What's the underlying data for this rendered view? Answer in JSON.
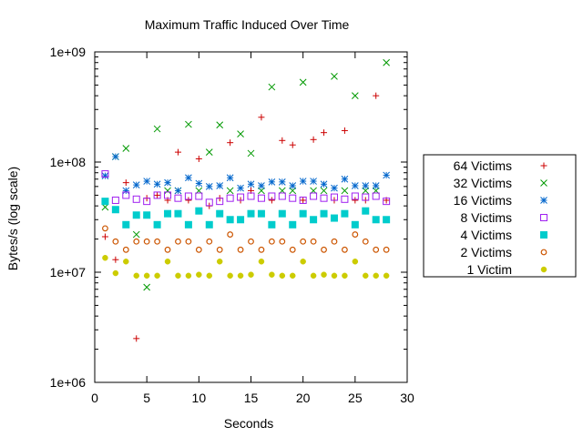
{
  "chart_data": {
    "type": "scatter",
    "title": "Maximum Traffic Induced Over Time",
    "xlabel": "Seconds",
    "ylabel": "Bytes/s (log scale)",
    "xlim": [
      0,
      30
    ],
    "ylim": [
      1000000,
      1000000000
    ],
    "yscale": "log",
    "grid": false,
    "legend_position": "right",
    "x_ticks": [
      0,
      5,
      10,
      15,
      20,
      25,
      30
    ],
    "x_tick_labels": [
      "0",
      "5",
      "10",
      "15",
      "20",
      "25",
      "30"
    ],
    "y_ticks": [
      1000000,
      10000000,
      100000000,
      1000000000
    ],
    "y_tick_labels": [
      "1e+06",
      "1e+07",
      "1e+08",
      "1e+09"
    ],
    "series": [
      {
        "name": "64 Victims",
        "marker": "plus",
        "color": "#cc0000",
        "x": [
          1,
          2,
          3,
          4,
          5,
          6,
          7,
          8,
          9,
          10,
          11,
          12,
          13,
          14,
          15,
          16,
          17,
          18,
          19,
          20,
          21,
          22,
          23,
          24,
          25,
          26,
          27,
          28
        ],
        "y": [
          21000000,
          13000000,
          65000000,
          2500000,
          47000000,
          50000000,
          45000000,
          123000000,
          45000000,
          107000000,
          40000000,
          47000000,
          150000000,
          45000000,
          55000000,
          255000000,
          45000000,
          157000000,
          143000000,
          45000000,
          160000000,
          185000000,
          45000000,
          193000000,
          45000000,
          45000000,
          400000000,
          45000000
        ]
      },
      {
        "name": "32 Victims",
        "marker": "cross",
        "color": "#009900",
        "x": [
          1,
          2,
          3,
          4,
          5,
          6,
          7,
          8,
          9,
          10,
          11,
          12,
          13,
          14,
          15,
          16,
          17,
          18,
          19,
          20,
          21,
          22,
          23,
          24,
          25,
          26,
          27,
          28
        ],
        "y": [
          39000000,
          112000000,
          133000000,
          22000000,
          7300000,
          200000000,
          55000000,
          55000000,
          220000000,
          55000000,
          123000000,
          217000000,
          55000000,
          180000000,
          120000000,
          55000000,
          480000000,
          55000000,
          55000000,
          530000000,
          55000000,
          55000000,
          600000000,
          55000000,
          400000000,
          55000000,
          55000000,
          800000000
        ]
      },
      {
        "name": "16 Victims",
        "marker": "star",
        "color": "#0066cc",
        "x": [
          1,
          2,
          3,
          4,
          5,
          6,
          7,
          8,
          9,
          10,
          11,
          12,
          13,
          14,
          15,
          16,
          17,
          18,
          19,
          20,
          21,
          22,
          23,
          24,
          25,
          26,
          27,
          28
        ],
        "y": [
          75000000,
          112000000,
          55000000,
          62000000,
          67000000,
          63000000,
          65000000,
          55000000,
          72000000,
          64000000,
          60000000,
          61000000,
          72000000,
          58000000,
          63000000,
          61000000,
          66000000,
          66000000,
          61000000,
          67000000,
          67000000,
          63000000,
          58000000,
          70000000,
          61000000,
          61000000,
          61000000,
          76000000
        ]
      },
      {
        "name": "8 Victims",
        "marker": "square-open",
        "color": "#a020f0",
        "x": [
          1,
          2,
          3,
          4,
          5,
          6,
          7,
          8,
          9,
          10,
          11,
          12,
          13,
          14,
          15,
          16,
          17,
          18,
          19,
          20,
          21,
          22,
          23,
          24,
          25,
          26,
          27,
          28
        ],
        "y": [
          78000000,
          45000000,
          50000000,
          46000000,
          44000000,
          50000000,
          50000000,
          47000000,
          49000000,
          49000000,
          43000000,
          44000000,
          47000000,
          48000000,
          49000000,
          47000000,
          49000000,
          49000000,
          47000000,
          45000000,
          49000000,
          47000000,
          48000000,
          46000000,
          49000000,
          48000000,
          49000000,
          44000000
        ]
      },
      {
        "name": "4 Victims",
        "marker": "square-filled",
        "color": "#00cccc",
        "x": [
          1,
          2,
          3,
          4,
          5,
          6,
          7,
          8,
          9,
          10,
          11,
          12,
          13,
          14,
          15,
          16,
          17,
          18,
          19,
          20,
          21,
          22,
          23,
          24,
          25,
          26,
          27,
          28
        ],
        "y": [
          44000000,
          37000000,
          27000000,
          33000000,
          33000000,
          27000000,
          34000000,
          34000000,
          27000000,
          36000000,
          27000000,
          34000000,
          30000000,
          30000000,
          34000000,
          34000000,
          27000000,
          34000000,
          27000000,
          34000000,
          30000000,
          34000000,
          31000000,
          34000000,
          27000000,
          36000000,
          30000000,
          30000000
        ]
      },
      {
        "name": "2 Victims",
        "marker": "circle-open",
        "color": "#cc5500",
        "x": [
          1,
          2,
          3,
          4,
          5,
          6,
          7,
          8,
          9,
          10,
          11,
          12,
          13,
          14,
          15,
          16,
          17,
          18,
          19,
          20,
          21,
          22,
          23,
          24,
          25,
          26,
          27,
          28
        ],
        "y": [
          25000000,
          19000000,
          16000000,
          19000000,
          19000000,
          19000000,
          16000000,
          19000000,
          19000000,
          16000000,
          19000000,
          16000000,
          22000000,
          16000000,
          19000000,
          16000000,
          19000000,
          19000000,
          16000000,
          19000000,
          19000000,
          16000000,
          19000000,
          16000000,
          22000000,
          19000000,
          16000000,
          16000000
        ]
      },
      {
        "name": "1 Victim",
        "marker": "circle-filled",
        "color": "#cccc00",
        "x": [
          1,
          2,
          3,
          4,
          5,
          6,
          7,
          8,
          9,
          10,
          11,
          12,
          13,
          14,
          15,
          16,
          17,
          18,
          19,
          20,
          21,
          22,
          23,
          24,
          25,
          26,
          27,
          28
        ],
        "y": [
          13500000,
          9800000,
          12500000,
          9300000,
          9300000,
          9300000,
          12500000,
          9300000,
          9300000,
          9500000,
          9300000,
          12500000,
          9300000,
          9300000,
          9500000,
          12500000,
          9500000,
          9300000,
          9300000,
          12500000,
          9300000,
          9500000,
          9300000,
          9300000,
          12500000,
          9300000,
          9300000,
          9300000
        ]
      }
    ]
  }
}
